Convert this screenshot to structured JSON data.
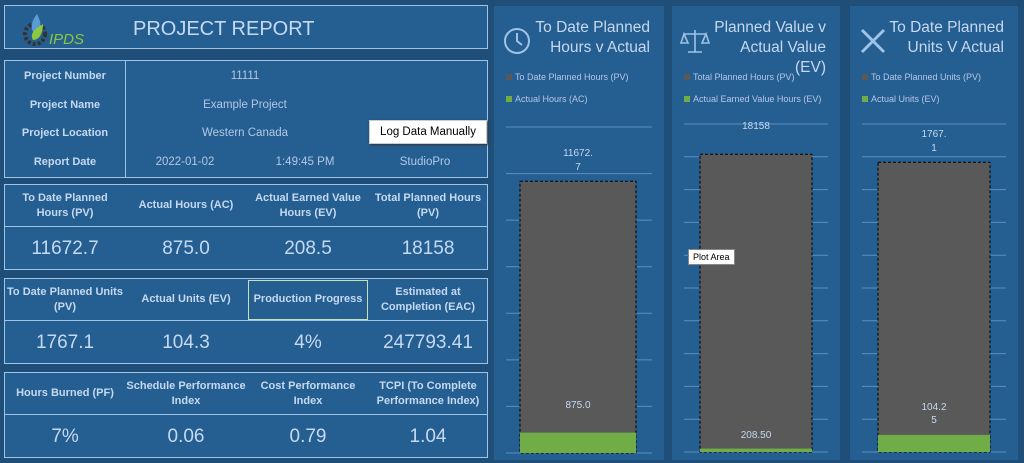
{
  "header": {
    "logo_text": "IPDS",
    "title": "PROJECT REPORT"
  },
  "info": {
    "labels": [
      "Project Number",
      "Project Name",
      "Project Location",
      "Report Date"
    ],
    "project_number": "11111",
    "project_name": "Example Project",
    "project_location": "Western Canada",
    "report_date": "2022-01-02",
    "report_time": "1:49:45 PM",
    "app": "StudioPro",
    "log_button": "Log Data Manually"
  },
  "kpi_rows": [
    {
      "headers": [
        "To Date Planned Hours (PV)",
        "Actual Hours (AC)",
        "Actual Earned Value Hours (EV)",
        "Total Planned Hours (PV)"
      ],
      "values": [
        "11672.7",
        "875.0",
        "208.5",
        "18158"
      ]
    },
    {
      "headers": [
        "To Date Planned Units (PV)",
        "Actual Units (EV)",
        "Production Progress",
        "Estimated at Completion (EAC)"
      ],
      "values": [
        "1767.1",
        "104.3",
        "4%",
        "247793.41"
      ]
    },
    {
      "headers": [
        "Hours Burned (PF)",
        "Schedule Performance Index",
        "Cost Performance Index",
        "TCPI (To Complete Performance Index)"
      ],
      "values": [
        "7%",
        "0.06",
        "0.79",
        "1.04"
      ]
    }
  ],
  "tooltip": "Plot Area",
  "colors": {
    "background": "#1f4e79",
    "panel": "#255e91",
    "planned": "#595959",
    "actual": "#70ad47"
  },
  "chart_data": [
    {
      "type": "bar",
      "icon": "clock-icon",
      "title": "To Date Planned Hours v Actual",
      "ylim": [
        0,
        14000
      ],
      "grid": true,
      "series": [
        {
          "name": "To Date Planned  Hours (PV)",
          "value": 11672.7,
          "label": "11672.7"
        },
        {
          "name": "Actual Hours (AC)",
          "value": 875.0,
          "label": "875.0"
        }
      ]
    },
    {
      "type": "bar",
      "icon": "scale-icon",
      "title": "Planned Value v Actual Value (EV)",
      "ylim": [
        0,
        20000
      ],
      "grid": true,
      "series": [
        {
          "name": "Total Planned Hours (PV)",
          "value": 18158,
          "label": "18158"
        },
        {
          "name": "Actual Earned Value Hours (EV)",
          "value": 208.5,
          "label": "208.50"
        }
      ]
    },
    {
      "type": "bar",
      "icon": "tools-icon",
      "title": "To Date Planned Units V Actual",
      "ylim": [
        0,
        2000
      ],
      "grid": true,
      "series": [
        {
          "name": "To Date Planned Units (PV)",
          "value": 1767.1,
          "label": "1767.1"
        },
        {
          "name": "Actual Units (EV)",
          "value": 104.25,
          "label": "104.25"
        }
      ]
    }
  ]
}
